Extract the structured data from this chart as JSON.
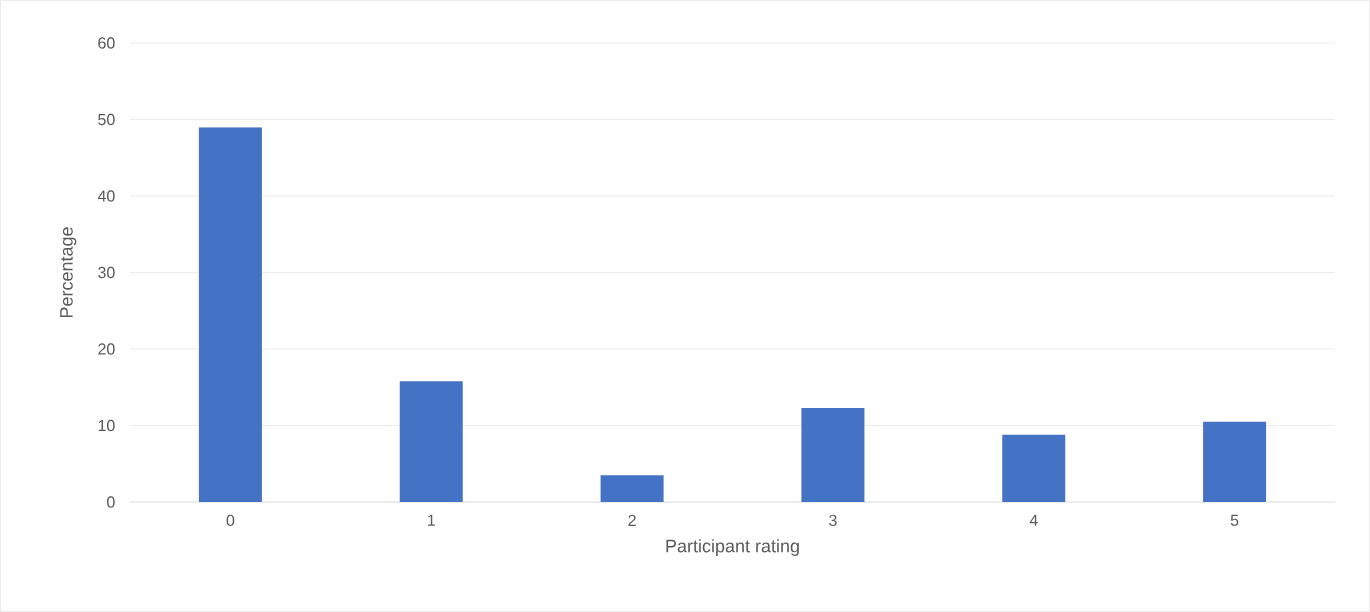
{
  "chart_data": {
    "type": "bar",
    "xlabel": "Participant rating",
    "ylabel": "Percentage",
    "categories": [
      "0",
      "1",
      "2",
      "3",
      "4",
      "5"
    ],
    "values": [
      49.0,
      15.8,
      3.5,
      12.3,
      8.8,
      10.5
    ],
    "color": "#4472c4",
    "ylim": [
      0,
      60
    ],
    "yticks": [
      0,
      10,
      20,
      30,
      40,
      50,
      60
    ],
    "grid": "y"
  }
}
